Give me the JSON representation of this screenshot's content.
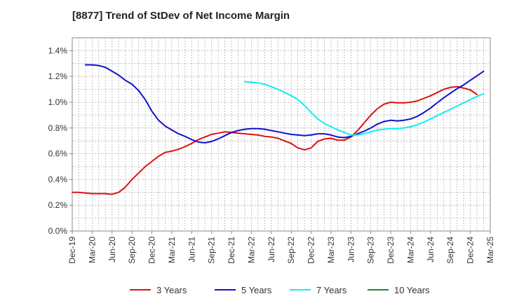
{
  "chart_data": {
    "type": "line",
    "title": "[8877]  Trend of StDev of Net Income Margin",
    "xlabel": "",
    "ylabel": "",
    "x": [
      "Dec-19",
      "Mar-20",
      "Jun-20",
      "Sep-20",
      "Dec-20",
      "Mar-21",
      "Jun-21",
      "Sep-21",
      "Dec-21",
      "Mar-22",
      "Jun-22",
      "Sep-22",
      "Dec-22",
      "Mar-23",
      "Jun-23",
      "Sep-23",
      "Dec-23",
      "Mar-24",
      "Jun-24",
      "Sep-24",
      "Dec-24",
      "Mar-25"
    ],
    "ylim": [
      0,
      1.5
    ],
    "yticks": [
      "0.0%",
      "0.2%",
      "0.4%",
      "0.6%",
      "0.8%",
      "1.0%",
      "1.2%",
      "1.4%"
    ],
    "ytick_values": [
      0,
      0.2,
      0.4,
      0.6,
      0.8,
      1.0,
      1.2,
      1.4
    ],
    "grid": true,
    "legend_position": "bottom",
    "series": [
      {
        "name": "3 Years",
        "color": "#dd1111",
        "points": [
          [
            "Dec-19",
            0.3
          ],
          [
            "Jan-20",
            0.3
          ],
          [
            "Feb-20",
            0.295
          ],
          [
            "Mar-20",
            0.29
          ],
          [
            "Apr-20",
            0.29
          ],
          [
            "May-20",
            0.29
          ],
          [
            "Jun-20",
            0.285
          ],
          [
            "Jul-20",
            0.3
          ],
          [
            "Aug-20",
            0.34
          ],
          [
            "Sep-20",
            0.4
          ],
          [
            "Oct-20",
            0.45
          ],
          [
            "Nov-20",
            0.5
          ],
          [
            "Dec-20",
            0.54
          ],
          [
            "Jan-21",
            0.58
          ],
          [
            "Feb-21",
            0.61
          ],
          [
            "Mar-21",
            0.62
          ],
          [
            "Apr-21",
            0.635
          ],
          [
            "May-21",
            0.655
          ],
          [
            "Jun-21",
            0.68
          ],
          [
            "Jul-21",
            0.71
          ],
          [
            "Aug-21",
            0.73
          ],
          [
            "Sep-21",
            0.75
          ],
          [
            "Oct-21",
            0.76
          ],
          [
            "Nov-21",
            0.77
          ],
          [
            "Dec-21",
            0.765
          ],
          [
            "Jan-22",
            0.76
          ],
          [
            "Feb-22",
            0.755
          ],
          [
            "Mar-22",
            0.75
          ],
          [
            "Apr-22",
            0.745
          ],
          [
            "May-22",
            0.735
          ],
          [
            "Jun-22",
            0.73
          ],
          [
            "Jul-22",
            0.72
          ],
          [
            "Aug-22",
            0.7
          ],
          [
            "Sep-22",
            0.68
          ],
          [
            "Oct-22",
            0.645
          ],
          [
            "Nov-22",
            0.63
          ],
          [
            "Dec-22",
            0.645
          ],
          [
            "Jan-23",
            0.695
          ],
          [
            "Feb-23",
            0.715
          ],
          [
            "Mar-23",
            0.72
          ],
          [
            "Apr-23",
            0.705
          ],
          [
            "May-23",
            0.705
          ],
          [
            "Jun-23",
            0.73
          ],
          [
            "Jul-23",
            0.78
          ],
          [
            "Aug-23",
            0.84
          ],
          [
            "Sep-23",
            0.9
          ],
          [
            "Oct-23",
            0.95
          ],
          [
            "Nov-23",
            0.985
          ],
          [
            "Dec-23",
            1.0
          ],
          [
            "Jan-24",
            0.995
          ],
          [
            "Feb-24",
            0.995
          ],
          [
            "Mar-24",
            1.0
          ],
          [
            "Apr-24",
            1.01
          ],
          [
            "May-24",
            1.03
          ],
          [
            "Jun-24",
            1.05
          ],
          [
            "Jul-24",
            1.075
          ],
          [
            "Aug-24",
            1.1
          ],
          [
            "Sep-24",
            1.115
          ],
          [
            "Oct-24",
            1.12
          ],
          [
            "Nov-24",
            1.11
          ],
          [
            "Dec-24",
            1.095
          ],
          [
            "Jan-25",
            1.06
          ]
        ]
      },
      {
        "name": "5 Years",
        "color": "#1111cc",
        "points": [
          [
            "Feb-20",
            1.29
          ],
          [
            "Mar-20",
            1.29
          ],
          [
            "Apr-20",
            1.285
          ],
          [
            "May-20",
            1.27
          ],
          [
            "Jun-20",
            1.24
          ],
          [
            "Jul-20",
            1.21
          ],
          [
            "Aug-20",
            1.17
          ],
          [
            "Sep-20",
            1.14
          ],
          [
            "Oct-20",
            1.09
          ],
          [
            "Nov-20",
            1.02
          ],
          [
            "Dec-20",
            0.93
          ],
          [
            "Jan-21",
            0.86
          ],
          [
            "Feb-21",
            0.815
          ],
          [
            "Mar-21",
            0.785
          ],
          [
            "Apr-21",
            0.755
          ],
          [
            "May-21",
            0.735
          ],
          [
            "Jun-21",
            0.71
          ],
          [
            "Jul-21",
            0.69
          ],
          [
            "Aug-21",
            0.685
          ],
          [
            "Sep-21",
            0.695
          ],
          [
            "Oct-21",
            0.715
          ],
          [
            "Nov-21",
            0.74
          ],
          [
            "Dec-21",
            0.765
          ],
          [
            "Jan-22",
            0.78
          ],
          [
            "Feb-22",
            0.79
          ],
          [
            "Mar-22",
            0.795
          ],
          [
            "Apr-22",
            0.795
          ],
          [
            "May-22",
            0.79
          ],
          [
            "Jun-22",
            0.78
          ],
          [
            "Jul-22",
            0.77
          ],
          [
            "Aug-22",
            0.76
          ],
          [
            "Sep-22",
            0.75
          ],
          [
            "Oct-22",
            0.745
          ],
          [
            "Nov-22",
            0.74
          ],
          [
            "Dec-22",
            0.745
          ],
          [
            "Jan-23",
            0.755
          ],
          [
            "Feb-23",
            0.755
          ],
          [
            "Mar-23",
            0.745
          ],
          [
            "Apr-23",
            0.73
          ],
          [
            "May-23",
            0.725
          ],
          [
            "Jun-23",
            0.735
          ],
          [
            "Jul-23",
            0.755
          ],
          [
            "Aug-23",
            0.775
          ],
          [
            "Sep-23",
            0.8
          ],
          [
            "Oct-23",
            0.83
          ],
          [
            "Nov-23",
            0.85
          ],
          [
            "Dec-23",
            0.86
          ],
          [
            "Jan-24",
            0.855
          ],
          [
            "Feb-24",
            0.86
          ],
          [
            "Mar-24",
            0.87
          ],
          [
            "Apr-24",
            0.89
          ],
          [
            "May-24",
            0.92
          ],
          [
            "Jun-24",
            0.955
          ],
          [
            "Jul-24",
            0.995
          ],
          [
            "Aug-24",
            1.035
          ],
          [
            "Sep-24",
            1.07
          ],
          [
            "Oct-24",
            1.105
          ],
          [
            "Nov-24",
            1.135
          ],
          [
            "Dec-24",
            1.17
          ],
          [
            "Jan-25",
            1.205
          ],
          [
            "Feb-25",
            1.24
          ]
        ]
      },
      {
        "name": "7 Years",
        "color": "#11eeee",
        "points": [
          [
            "Feb-22",
            1.16
          ],
          [
            "Mar-22",
            1.155
          ],
          [
            "Apr-22",
            1.15
          ],
          [
            "May-22",
            1.14
          ],
          [
            "Jun-22",
            1.12
          ],
          [
            "Jul-22",
            1.1
          ],
          [
            "Aug-22",
            1.075
          ],
          [
            "Sep-22",
            1.05
          ],
          [
            "Oct-22",
            1.02
          ],
          [
            "Nov-22",
            0.975
          ],
          [
            "Dec-22",
            0.92
          ],
          [
            "Jan-23",
            0.87
          ],
          [
            "Feb-23",
            0.835
          ],
          [
            "Mar-23",
            0.81
          ],
          [
            "Apr-23",
            0.785
          ],
          [
            "May-23",
            0.765
          ],
          [
            "Jun-23",
            0.745
          ],
          [
            "Jul-23",
            0.745
          ],
          [
            "Aug-23",
            0.755
          ],
          [
            "Sep-23",
            0.77
          ],
          [
            "Oct-23",
            0.785
          ],
          [
            "Nov-23",
            0.79
          ],
          [
            "Dec-23",
            0.795
          ],
          [
            "Jan-24",
            0.795
          ],
          [
            "Feb-24",
            0.8
          ],
          [
            "Mar-24",
            0.81
          ],
          [
            "Apr-24",
            0.825
          ],
          [
            "May-24",
            0.845
          ],
          [
            "Jun-24",
            0.87
          ],
          [
            "Jul-24",
            0.895
          ],
          [
            "Aug-24",
            0.92
          ],
          [
            "Sep-24",
            0.945
          ],
          [
            "Oct-24",
            0.97
          ],
          [
            "Nov-24",
            0.995
          ],
          [
            "Dec-24",
            1.02
          ],
          [
            "Jan-25",
            1.045
          ],
          [
            "Feb-25",
            1.065
          ]
        ]
      },
      {
        "name": "10 Years",
        "color": "#228B22",
        "points": []
      }
    ]
  }
}
